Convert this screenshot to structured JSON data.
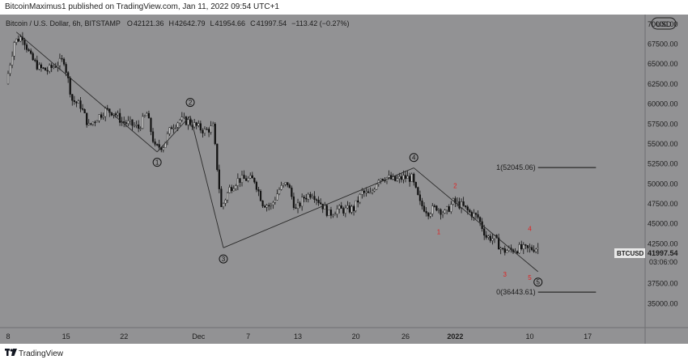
{
  "header": {
    "published_line": "BitcoinMaximus1 published on TradingView.com, Jan 11, 2022 09:54 UTC+1"
  },
  "footer": {
    "brand": "TradingView"
  },
  "colors": {
    "background": "#929294",
    "text": "#1d1d1d",
    "wave_count": "#e02020",
    "accent": "#1d1d1d"
  },
  "chart_data": {
    "type": "candlestick",
    "symbol_title": "Bitcoin / U.S. Dollar, 6h, BITSTAMP",
    "ohlc_readout": [
      {
        "key": "O",
        "value": "42121.36"
      },
      {
        "key": "H",
        "value": "42642.79"
      },
      {
        "key": "L",
        "value": "41954.66"
      },
      {
        "key": "C",
        "value": "41997.54"
      },
      {
        "key": "",
        "value": "−113.42 (−0.27%)"
      }
    ],
    "currency_button": "USD",
    "price_tag": {
      "symbol": "BTCUSD",
      "price": "41997.54",
      "countdown": "03:06:00",
      "value": 41997.54
    },
    "ylim": [
      32000,
      71200
    ],
    "y_ticks": [
      {
        "value": 70000,
        "label": "70000.00"
      },
      {
        "value": 67500,
        "label": "67500.00"
      },
      {
        "value": 65000,
        "label": "65000.00"
      },
      {
        "value": 62500,
        "label": "62500.00"
      },
      {
        "value": 60000,
        "label": "60000.00"
      },
      {
        "value": 57500,
        "label": "57500.00"
      },
      {
        "value": 55000,
        "label": "55000.00"
      },
      {
        "value": 52500,
        "label": "52500.00"
      },
      {
        "value": 50000,
        "label": "50000.00"
      },
      {
        "value": 47500,
        "label": "47500.00"
      },
      {
        "value": 45000,
        "label": "45000.00"
      },
      {
        "value": 42500,
        "label": "42500.00"
      },
      {
        "value": 40000,
        "label": "40000.00"
      },
      {
        "value": 37500,
        "label": "37500.00"
      },
      {
        "value": 35000,
        "label": "35000.00"
      }
    ],
    "x_range_days": [
      "2021-11-08",
      "2022-01-21"
    ],
    "x_ticks": [
      {
        "date": "2021-11-08",
        "label": "8"
      },
      {
        "date": "2021-11-15",
        "label": "15"
      },
      {
        "date": "2021-11-22",
        "label": "22"
      },
      {
        "date": "2021-12-01",
        "label": "Dec"
      },
      {
        "date": "2021-12-07",
        "label": "7"
      },
      {
        "date": "2021-12-13",
        "label": "13"
      },
      {
        "date": "2021-12-20",
        "label": "20"
      },
      {
        "date": "2021-12-26",
        "label": "26"
      },
      {
        "date": "2022-01-01",
        "label": "2022",
        "bold": true
      },
      {
        "date": "2022-01-10",
        "label": "10"
      },
      {
        "date": "2022-01-17",
        "label": "17"
      }
    ],
    "price_path": [
      {
        "date": "2021-11-08",
        "value": 62500
      },
      {
        "date": "2021-11-09",
        "value": 67800
      },
      {
        "date": "2021-11-10",
        "value": 68500
      },
      {
        "date": "2021-11-11",
        "value": 65800
      },
      {
        "date": "2021-11-12",
        "value": 64500
      },
      {
        "date": "2021-11-13",
        "value": 64200
      },
      {
        "date": "2021-11-14",
        "value": 64900
      },
      {
        "date": "2021-11-15",
        "value": 65500
      },
      {
        "date": "2021-11-16",
        "value": 60500
      },
      {
        "date": "2021-11-17",
        "value": 59800
      },
      {
        "date": "2021-11-18",
        "value": 57200
      },
      {
        "date": "2021-11-19",
        "value": 58300
      },
      {
        "date": "2021-11-20",
        "value": 59200
      },
      {
        "date": "2021-11-21",
        "value": 59000
      },
      {
        "date": "2021-11-22",
        "value": 57800
      },
      {
        "date": "2021-11-23",
        "value": 57500
      },
      {
        "date": "2021-11-24",
        "value": 57000
      },
      {
        "date": "2021-11-25",
        "value": 58800
      },
      {
        "date": "2021-11-26",
        "value": 54500
      },
      {
        "date": "2021-11-27",
        "value": 54800
      },
      {
        "date": "2021-11-28",
        "value": 57200
      },
      {
        "date": "2021-11-29",
        "value": 58000
      },
      {
        "date": "2021-11-30",
        "value": 57800
      },
      {
        "date": "2021-12-01",
        "value": 57200
      },
      {
        "date": "2021-12-02",
        "value": 56600
      },
      {
        "date": "2021-12-03",
        "value": 57100
      },
      {
        "date": "2021-12-04",
        "value": 47000
      },
      {
        "date": "2021-12-05",
        "value": 49400
      },
      {
        "date": "2021-12-06",
        "value": 50500
      },
      {
        "date": "2021-12-07",
        "value": 50600
      },
      {
        "date": "2021-12-08",
        "value": 50500
      },
      {
        "date": "2021-12-09",
        "value": 47600
      },
      {
        "date": "2021-12-10",
        "value": 47200
      },
      {
        "date": "2021-12-11",
        "value": 49300
      },
      {
        "date": "2021-12-12",
        "value": 50100
      },
      {
        "date": "2021-12-13",
        "value": 46700
      },
      {
        "date": "2021-12-14",
        "value": 48300
      },
      {
        "date": "2021-12-15",
        "value": 48900
      },
      {
        "date": "2021-12-16",
        "value": 47600
      },
      {
        "date": "2021-12-17",
        "value": 46200
      },
      {
        "date": "2021-12-18",
        "value": 46800
      },
      {
        "date": "2021-12-19",
        "value": 46700
      },
      {
        "date": "2021-12-20",
        "value": 46900
      },
      {
        "date": "2021-12-21",
        "value": 48900
      },
      {
        "date": "2021-12-22",
        "value": 48600
      },
      {
        "date": "2021-12-23",
        "value": 50800
      },
      {
        "date": "2021-12-24",
        "value": 50800
      },
      {
        "date": "2021-12-25",
        "value": 50400
      },
      {
        "date": "2021-12-26",
        "value": 50800
      },
      {
        "date": "2021-12-27",
        "value": 50700
      },
      {
        "date": "2021-12-28",
        "value": 47500
      },
      {
        "date": "2021-12-29",
        "value": 46500
      },
      {
        "date": "2021-12-30",
        "value": 47100
      },
      {
        "date": "2021-12-31",
        "value": 46300
      },
      {
        "date": "2022-01-01",
        "value": 47700
      },
      {
        "date": "2022-01-02",
        "value": 47300
      },
      {
        "date": "2022-01-03",
        "value": 46400
      },
      {
        "date": "2022-01-04",
        "value": 45800
      },
      {
        "date": "2022-01-05",
        "value": 43400
      },
      {
        "date": "2022-01-06",
        "value": 43100
      },
      {
        "date": "2022-01-07",
        "value": 41600
      },
      {
        "date": "2022-01-08",
        "value": 41700
      },
      {
        "date": "2022-01-09",
        "value": 41900
      },
      {
        "date": "2022-01-10",
        "value": 41800
      },
      {
        "date": "2022-01-11",
        "value": 41998
      }
    ],
    "wave_lines": [
      {
        "date": "2021-11-09",
        "value": 69000
      },
      {
        "date": "2021-11-26",
        "value": 54000
      },
      {
        "date": "2021-11-30",
        "value": 58500
      },
      {
        "date": "2021-12-04",
        "value": 42000
      },
      {
        "date": "2021-12-27",
        "value": 52000
      },
      {
        "date": "2022-01-11",
        "value": 39000
      }
    ],
    "wave_labels_major": [
      {
        "date": "2021-11-26",
        "value": 52700,
        "label": "1"
      },
      {
        "date": "2021-11-30",
        "value": 60200,
        "label": "2"
      },
      {
        "date": "2021-12-04",
        "value": 40600,
        "label": "3"
      },
      {
        "date": "2021-12-27",
        "value": 53300,
        "label": "4"
      },
      {
        "date": "2022-01-11",
        "value": 37700,
        "label": "5"
      }
    ],
    "wave_labels_minor": [
      {
        "date": "2021-12-30",
        "value": 44000,
        "label": "1"
      },
      {
        "date": "2022-01-01",
        "value": 49800,
        "label": "2"
      },
      {
        "date": "2022-01-07",
        "value": 38700,
        "label": "3"
      },
      {
        "date": "2022-01-10",
        "value": 44400,
        "label": "4"
      },
      {
        "date": "2022-01-10",
        "value": 38300,
        "label": "5"
      }
    ],
    "fib_levels": [
      {
        "label": "1(52045.06)",
        "value": 52045.06,
        "from": "2022-01-11",
        "to": "2022-01-18"
      },
      {
        "label": "0(36443.61)",
        "value": 36443.61,
        "from": "2022-01-11",
        "to": "2022-01-18"
      }
    ]
  }
}
